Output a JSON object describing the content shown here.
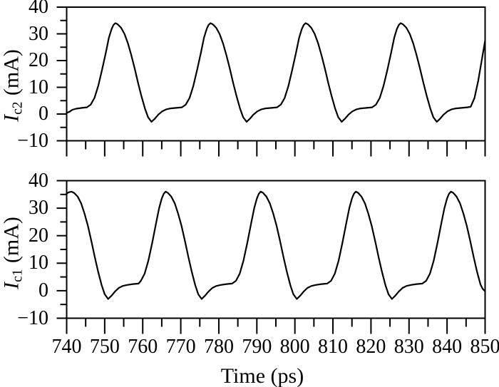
{
  "figure": {
    "background": "#ffffff",
    "line_color": "#000000"
  },
  "chart_data": {
    "type": "line",
    "title": "",
    "xlabel": "Time (ps)",
    "grid": false,
    "legend": null,
    "xlim": [
      740,
      850
    ],
    "xticks_major": [
      740,
      750,
      760,
      770,
      780,
      790,
      800,
      810,
      820,
      830,
      840,
      850
    ],
    "xticks_minor": [
      745,
      755,
      765,
      775,
      785,
      795,
      805,
      815,
      825,
      835,
      845
    ],
    "xtick_labels": [
      "740",
      "750",
      "760",
      "770",
      "780",
      "790",
      "800",
      "810",
      "820",
      "830",
      "840",
      "850"
    ],
    "subplots": [
      {
        "id": "ic2",
        "position": "top",
        "ylabel": {
          "symbol": "I",
          "subscript": "c2",
          "unit": "(mA)"
        },
        "ylim": [
          -10,
          40
        ],
        "yticks_major": [
          40,
          30,
          20,
          10,
          0,
          -10
        ],
        "yticks_minor": [
          35,
          25,
          15,
          5,
          -5
        ],
        "ytick_labels": [
          "40",
          "30",
          "20",
          "10",
          "0",
          "−10"
        ],
        "series": {
          "name": "Ic2",
          "period_ps": 25,
          "points": [
            [
              740,
              0.4
            ],
            [
              740.8,
              0.9
            ],
            [
              741.5,
              1.6
            ],
            [
              742.5,
              2.0
            ],
            [
              744,
              2.3
            ],
            [
              745.3,
              2.5
            ],
            [
              746.3,
              3.5
            ],
            [
              747.3,
              6
            ],
            [
              748.3,
              10.5
            ],
            [
              749.3,
              16.5
            ],
            [
              750.3,
              23
            ],
            [
              751.1,
              28.5
            ],
            [
              751.8,
              31.8
            ],
            [
              752.3,
              33.3
            ],
            [
              752.8,
              34
            ],
            [
              753.4,
              33.6
            ],
            [
              754.3,
              32.3
            ],
            [
              755.2,
              30
            ],
            [
              756.1,
              26.5
            ],
            [
              757,
              22
            ],
            [
              757.9,
              17
            ],
            [
              758.8,
              11.5
            ],
            [
              759.7,
              6.5
            ],
            [
              760.6,
              2
            ],
            [
              761.4,
              -1.2
            ],
            [
              762.3,
              -2.9
            ],
            [
              763.2,
              -1.7
            ],
            [
              764.1,
              -0.2
            ],
            [
              765.1,
              1
            ],
            [
              766.1,
              1.7
            ],
            [
              767.3,
              2.1
            ],
            [
              768.8,
              2.3
            ],
            [
              770.3,
              2.5
            ],
            [
              771.3,
              3.5
            ],
            [
              772.3,
              6
            ],
            [
              773.3,
              10.5
            ],
            [
              774.3,
              16.5
            ],
            [
              775.3,
              23
            ],
            [
              776.1,
              28.5
            ],
            [
              776.8,
              31.8
            ],
            [
              777.3,
              33.3
            ],
            [
              777.8,
              34
            ],
            [
              778.4,
              33.6
            ],
            [
              779.3,
              32.3
            ],
            [
              780.2,
              30
            ],
            [
              781.1,
              26.5
            ],
            [
              782,
              22
            ],
            [
              782.9,
              17
            ],
            [
              783.8,
              11.5
            ],
            [
              784.7,
              6.5
            ],
            [
              785.6,
              2
            ],
            [
              786.4,
              -1.2
            ],
            [
              787.3,
              -2.9
            ],
            [
              788.2,
              -1.7
            ],
            [
              789.1,
              -0.2
            ],
            [
              790.1,
              1
            ],
            [
              791.1,
              1.7
            ],
            [
              792.3,
              2.1
            ],
            [
              793.8,
              2.3
            ],
            [
              795.3,
              2.5
            ],
            [
              796.3,
              3.5
            ],
            [
              797.3,
              6
            ],
            [
              798.3,
              10.5
            ],
            [
              799.3,
              16.5
            ],
            [
              800.3,
              23
            ],
            [
              801.1,
              28.5
            ],
            [
              801.8,
              31.8
            ],
            [
              802.3,
              33.3
            ],
            [
              802.8,
              34
            ],
            [
              803.4,
              33.6
            ],
            [
              804.3,
              32.3
            ],
            [
              805.2,
              30
            ],
            [
              806.1,
              26.5
            ],
            [
              807,
              22
            ],
            [
              807.9,
              17
            ],
            [
              808.8,
              11.5
            ],
            [
              809.7,
              6.5
            ],
            [
              810.6,
              2
            ],
            [
              811.4,
              -1.2
            ],
            [
              812.3,
              -2.9
            ],
            [
              813.2,
              -1.7
            ],
            [
              814.1,
              -0.2
            ],
            [
              815.1,
              1
            ],
            [
              816.1,
              1.7
            ],
            [
              817.3,
              2.1
            ],
            [
              818.8,
              2.3
            ],
            [
              820.3,
              2.5
            ],
            [
              821.3,
              3.5
            ],
            [
              822.3,
              6
            ],
            [
              823.3,
              10.5
            ],
            [
              824.3,
              16.5
            ],
            [
              825.3,
              23
            ],
            [
              826.1,
              28.5
            ],
            [
              826.8,
              31.8
            ],
            [
              827.3,
              33.3
            ],
            [
              827.8,
              34
            ],
            [
              828.4,
              33.6
            ],
            [
              829.3,
              32.3
            ],
            [
              830.2,
              30
            ],
            [
              831.1,
              26.5
            ],
            [
              832,
              22
            ],
            [
              832.9,
              17
            ],
            [
              833.8,
              11.5
            ],
            [
              834.7,
              6.5
            ],
            [
              835.6,
              2
            ],
            [
              836.4,
              -1.2
            ],
            [
              837.3,
              -2.9
            ],
            [
              838.2,
              -1.7
            ],
            [
              839.1,
              -0.2
            ],
            [
              840.1,
              1
            ],
            [
              841.1,
              1.7
            ],
            [
              842.3,
              2.1
            ],
            [
              843.8,
              2.3
            ],
            [
              845.3,
              2.5
            ],
            [
              846.2,
              2.7
            ],
            [
              847.2,
              6
            ],
            [
              848.2,
              12.5
            ],
            [
              849.1,
              20
            ],
            [
              850,
              27.5
            ]
          ]
        }
      },
      {
        "id": "ic1",
        "position": "bottom",
        "ylabel": {
          "symbol": "I",
          "subscript": "c1",
          "unit": "(mA)"
        },
        "ylim": [
          -10,
          40
        ],
        "yticks_major": [
          40,
          30,
          20,
          10,
          0,
          -10
        ],
        "yticks_minor": [
          35,
          25,
          15,
          5,
          -5
        ],
        "ytick_labels": [
          "40",
          "30",
          "20",
          "10",
          "0",
          "−10"
        ],
        "series": {
          "name": "Ic1",
          "period_ps": 25,
          "points": [
            [
              740,
              35.3
            ],
            [
              740.6,
              35.8
            ],
            [
              741.3,
              36
            ],
            [
              742,
              35.5
            ],
            [
              742.9,
              34.2
            ],
            [
              743.8,
              31.8
            ],
            [
              744.7,
              28
            ],
            [
              745.6,
              23.5
            ],
            [
              746.5,
              18
            ],
            [
              747.4,
              12.2
            ],
            [
              748.3,
              6.8
            ],
            [
              749.2,
              2
            ],
            [
              750,
              -1.3
            ],
            [
              750.9,
              -3
            ],
            [
              751.8,
              -1.8
            ],
            [
              752.7,
              -0.3
            ],
            [
              753.7,
              1
            ],
            [
              754.7,
              1.7
            ],
            [
              755.9,
              2.1
            ],
            [
              757.4,
              2.4
            ],
            [
              758.9,
              2.6
            ],
            [
              759.5,
              3.6
            ],
            [
              760.5,
              6.2
            ],
            [
              761.5,
              11
            ],
            [
              762.5,
              17.5
            ],
            [
              763.5,
              24.5
            ],
            [
              764.3,
              30
            ],
            [
              765,
              33.5
            ],
            [
              765.5,
              35.2
            ],
            [
              766,
              36
            ],
            [
              766.6,
              35.6
            ],
            [
              767.5,
              34.2
            ],
            [
              768.4,
              31.8
            ],
            [
              769.3,
              28
            ],
            [
              770.2,
              23.5
            ],
            [
              771.1,
              18
            ],
            [
              772,
              12.2
            ],
            [
              772.9,
              6.8
            ],
            [
              773.8,
              2
            ],
            [
              774.6,
              -1.3
            ],
            [
              775.5,
              -3
            ],
            [
              776.4,
              -1.8
            ],
            [
              777.3,
              -0.3
            ],
            [
              778.3,
              1
            ],
            [
              779.3,
              1.7
            ],
            [
              780.5,
              2.1
            ],
            [
              782,
              2.4
            ],
            [
              783.5,
              2.6
            ],
            [
              784.5,
              3.6
            ],
            [
              785.5,
              6.2
            ],
            [
              786.5,
              11
            ],
            [
              787.5,
              17.5
            ],
            [
              788.5,
              24.5
            ],
            [
              789.3,
              30
            ],
            [
              790,
              33.5
            ],
            [
              790.5,
              35.2
            ],
            [
              791,
              36
            ],
            [
              791.6,
              35.6
            ],
            [
              792.5,
              34.2
            ],
            [
              793.4,
              31.8
            ],
            [
              794.3,
              28
            ],
            [
              795.2,
              23.5
            ],
            [
              796.1,
              18
            ],
            [
              797,
              12.2
            ],
            [
              797.9,
              6.8
            ],
            [
              798.8,
              2
            ],
            [
              799.6,
              -1.3
            ],
            [
              800.5,
              -3
            ],
            [
              801.4,
              -1.8
            ],
            [
              802.3,
              -0.3
            ],
            [
              803.3,
              1
            ],
            [
              804.3,
              1.7
            ],
            [
              805.5,
              2.1
            ],
            [
              807,
              2.4
            ],
            [
              808.5,
              2.6
            ],
            [
              809.5,
              3.6
            ],
            [
              810.5,
              6.2
            ],
            [
              811.5,
              11
            ],
            [
              812.5,
              17.5
            ],
            [
              813.5,
              24.5
            ],
            [
              814.3,
              30
            ],
            [
              815,
              33.5
            ],
            [
              815.5,
              35.2
            ],
            [
              816,
              36
            ],
            [
              816.6,
              35.6
            ],
            [
              817.5,
              34.2
            ],
            [
              818.4,
              31.8
            ],
            [
              819.3,
              28
            ],
            [
              820.2,
              23.5
            ],
            [
              821.1,
              18
            ],
            [
              822,
              12.2
            ],
            [
              822.9,
              6.8
            ],
            [
              823.8,
              2
            ],
            [
              824.6,
              -1.3
            ],
            [
              825.5,
              -3
            ],
            [
              826.4,
              -1.8
            ],
            [
              827.3,
              -0.3
            ],
            [
              828.3,
              1
            ],
            [
              829.3,
              1.7
            ],
            [
              830.5,
              2.1
            ],
            [
              832,
              2.4
            ],
            [
              833.5,
              2.6
            ],
            [
              834.5,
              3.6
            ],
            [
              835.5,
              6.2
            ],
            [
              836.5,
              11
            ],
            [
              837.5,
              17.5
            ],
            [
              838.5,
              24.5
            ],
            [
              839.3,
              30
            ],
            [
              840,
              33.5
            ],
            [
              840.5,
              35.2
            ],
            [
              841,
              36
            ],
            [
              841.6,
              35.6
            ],
            [
              842.5,
              34.2
            ],
            [
              843.4,
              31.8
            ],
            [
              844.3,
              28
            ],
            [
              845.2,
              23.5
            ],
            [
              846.1,
              18
            ],
            [
              847,
              12.2
            ],
            [
              847.9,
              6.8
            ],
            [
              848.8,
              2.2
            ],
            [
              849.4,
              0.6
            ],
            [
              850,
              -0.2
            ]
          ]
        }
      }
    ]
  }
}
